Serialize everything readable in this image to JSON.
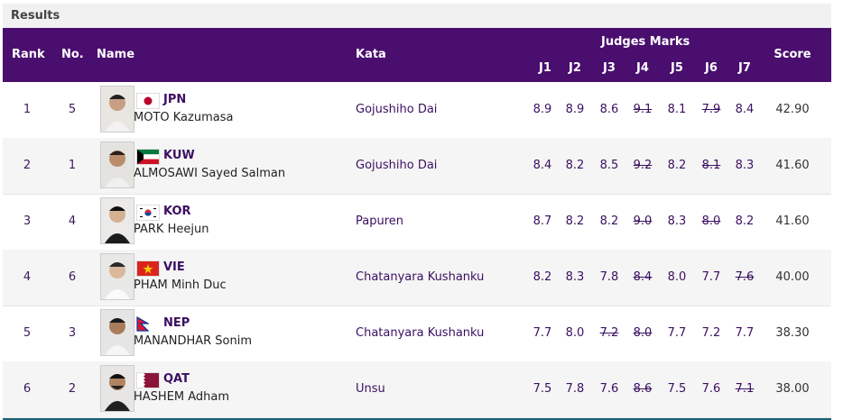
{
  "title": "Results",
  "header": {
    "rank": "Rank",
    "no": "No.",
    "name": "Name",
    "kata": "Kata",
    "judges": "Judges Marks",
    "j": [
      "J1",
      "J2",
      "J3",
      "J4",
      "J5",
      "J6",
      "J7"
    ],
    "score": "Score"
  },
  "rows": [
    {
      "rank": "1",
      "no": "5",
      "country": "JPN",
      "name": "MOTO Kazumasa",
      "kata": "Gojushiho Dai",
      "marks": [
        "8.9",
        "8.9",
        "8.6",
        "9.1",
        "8.1",
        "7.9",
        "8.4"
      ],
      "struck": [
        false,
        false,
        false,
        true,
        false,
        true,
        false
      ],
      "score": "42.90"
    },
    {
      "rank": "2",
      "no": "1",
      "country": "KUW",
      "name": "ALMOSAWI Sayed Salman",
      "kata": "Gojushiho Dai",
      "marks": [
        "8.4",
        "8.2",
        "8.5",
        "9.2",
        "8.2",
        "8.1",
        "8.3"
      ],
      "struck": [
        false,
        false,
        false,
        true,
        false,
        true,
        false
      ],
      "score": "41.60"
    },
    {
      "rank": "3",
      "no": "4",
      "country": "KOR",
      "name": "PARK Heejun",
      "kata": "Papuren",
      "marks": [
        "8.7",
        "8.2",
        "8.2",
        "9.0",
        "8.3",
        "8.0",
        "8.2"
      ],
      "struck": [
        false,
        false,
        false,
        true,
        false,
        true,
        false
      ],
      "score": "41.60"
    },
    {
      "rank": "4",
      "no": "6",
      "country": "VIE",
      "name": "PHAM Minh Duc",
      "kata": "Chatanyara Kushanku",
      "marks": [
        "8.2",
        "8.3",
        "7.8",
        "8.4",
        "8.0",
        "7.7",
        "7.6"
      ],
      "struck": [
        false,
        false,
        false,
        true,
        false,
        false,
        true
      ],
      "score": "40.00"
    },
    {
      "rank": "5",
      "no": "3",
      "country": "NEP",
      "name": "MANANDHAR Sonim",
      "kata": "Chatanyara Kushanku",
      "marks": [
        "7.7",
        "8.0",
        "7.2",
        "8.0",
        "7.7",
        "7.2",
        "7.7"
      ],
      "struck": [
        false,
        false,
        true,
        true,
        false,
        false,
        false
      ],
      "score": "38.30"
    },
    {
      "rank": "6",
      "no": "2",
      "country": "QAT",
      "name": "HASHEM Adham",
      "kata": "Unsu",
      "marks": [
        "7.5",
        "7.8",
        "7.6",
        "8.6",
        "7.5",
        "7.6",
        "7.1"
      ],
      "struck": [
        false,
        false,
        false,
        true,
        false,
        false,
        true
      ],
      "score": "38.00"
    }
  ],
  "icons": {
    "flag_jpn": "flag-japan-icon",
    "flag_kuw": "flag-kuwait-icon",
    "flag_kor": "flag-korea-icon",
    "flag_vie": "flag-vietnam-icon",
    "flag_nep": "flag-nepal-icon",
    "flag_qat": "flag-qatar-icon"
  },
  "colors": {
    "header_bg": "#4a0e6e",
    "text_purple": "#3b0f61",
    "stripe": "#f5f5f5"
  }
}
